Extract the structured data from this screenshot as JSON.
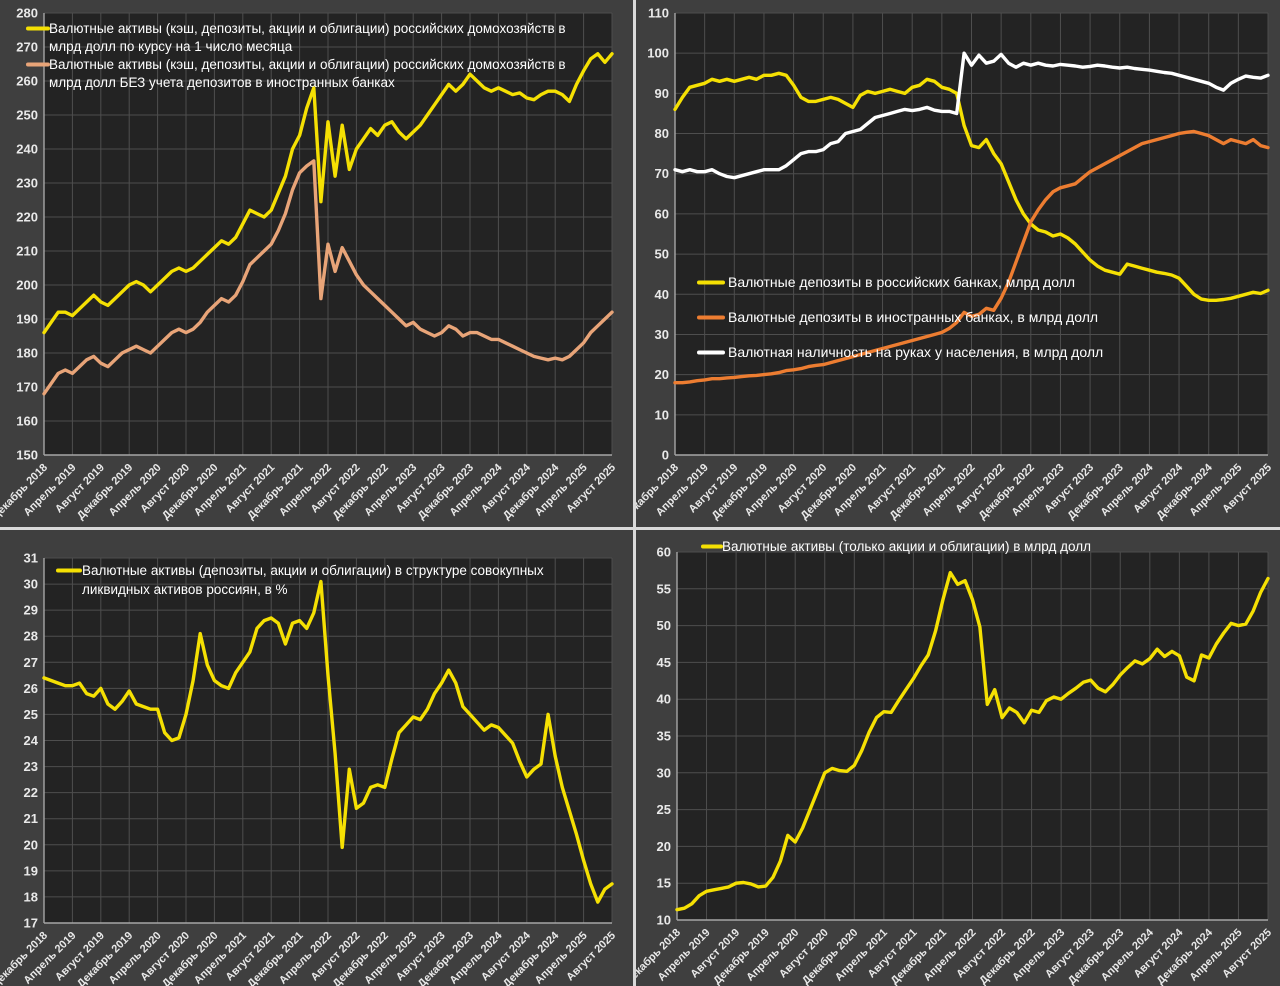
{
  "page": {
    "separator_color": "#d9d9d9",
    "panel_bg": "#3f3f3f",
    "plot_bg": "#232323",
    "grid_color": "#4e4e4e",
    "axis_color": "#a6a6a6",
    "tick_color": "#e9e9e9",
    "legend_color": "#ffffff",
    "accent_yellow": "#f5e003",
    "accent_salmon": "#e8a478",
    "accent_orange": "#ed7d31",
    "accent_white": "#ffffff"
  },
  "x_axis": {
    "n_points": 81,
    "points_per_tick": 4,
    "tick_labels": [
      "Декабрь 2018",
      "Апрель 2019",
      "Август 2019",
      "Декабрь 2019",
      "Апрель 2020",
      "Август 2020",
      "Декабрь 2020",
      "Апрель 2021",
      "Август 2021",
      "Декабрь 2021",
      "Апрель 2022",
      "Август 2022",
      "Декабрь 2022",
      "Апрель 2023",
      "Август 2023",
      "Декабрь 2023",
      "Апрель 2024",
      "Август 2024",
      "Декабрь 2024",
      "Апрель 2025",
      "Август 2025"
    ]
  },
  "chart_data": [
    {
      "id": "total-fx-assets",
      "type": "line",
      "position": "top-left",
      "y_axis": {
        "min": 150,
        "max": 280,
        "step": 10
      },
      "legend": {
        "entries": [
          {
            "color": "#f5e003",
            "lines": [
              "Валютные активы (кэш, депозиты, акции и облигации) российских домохозяйств в",
              "млрд долл по курсу на 1 число месяца"
            ]
          },
          {
            "color": "#e8a478",
            "lines": [
              "Валютные активы (кэш, депозиты, акции и облигации) российских домохозяйств в",
              "млрд долл БЕЗ учета депозитов в иностранных банках"
            ]
          }
        ]
      },
      "series": [
        {
          "name": "Валютные активы (кэш, депозиты, акции и облигации) российских домохозяйств в млрд долл по курсу на 1 число месяца",
          "color": "#f5e003",
          "values": [
            186,
            189,
            192,
            192,
            191,
            193,
            195,
            197,
            195,
            194,
            196,
            198,
            200,
            201,
            200,
            198,
            200,
            202,
            204,
            205,
            204,
            205,
            207,
            209,
            211,
            213,
            212,
            214,
            218,
            222,
            221,
            220,
            222,
            227,
            232,
            240,
            244,
            252,
            258,
            224.5,
            248,
            232,
            247,
            234,
            240,
            243,
            246,
            244,
            247,
            248,
            245,
            243,
            245,
            247,
            250,
            253,
            256,
            259,
            257,
            259,
            262,
            260,
            258,
            257,
            258,
            257,
            256,
            256.5,
            255,
            254.5,
            256,
            257,
            257,
            256,
            254,
            259,
            263,
            266.5,
            268,
            265.5,
            268
          ]
        },
        {
          "name": "Валютные активы (кэш, депозиты, акции и облигации) российских домохозяйств в млрд долл БЕЗ учета депозитов в иностранных банках",
          "color": "#e8a478",
          "values": [
            168,
            171,
            174,
            175,
            174,
            176,
            178,
            179,
            177,
            176,
            178,
            180,
            181,
            182,
            181,
            180,
            182,
            184,
            186,
            187,
            186,
            187,
            189,
            192,
            194,
            196,
            195,
            197,
            201,
            206,
            208,
            210,
            212,
            216,
            221,
            228,
            233,
            235,
            236.5,
            196,
            212,
            204,
            211,
            207,
            203,
            200,
            198,
            196,
            194,
            192,
            190,
            188,
            189,
            187,
            186,
            185,
            186,
            188,
            187,
            185,
            186,
            186,
            185,
            184,
            184,
            183,
            182,
            181,
            180,
            179,
            178.5,
            178,
            178.5,
            178,
            179,
            181,
            183,
            186,
            188,
            190,
            192
          ]
        }
      ]
    },
    {
      "id": "deposits-and-cash",
      "type": "line",
      "position": "top-right",
      "y_axis": {
        "min": 0,
        "max": 110,
        "step": 10
      },
      "legend": {
        "entries": [
          {
            "color": "#f5e003",
            "lines": [
              "Валютные депозиты в российских банках, млрд долл"
            ]
          },
          {
            "color": "#ed7d31",
            "lines": [
              "Валютные депозиты в иностранных банках, в млрд долл"
            ]
          },
          {
            "color": "#ffffff",
            "lines": [
              "Валютная наличность на руках у населения, в млрд долл"
            ]
          }
        ]
      },
      "series": [
        {
          "name": "Валютные депозиты в российских банках, млрд долл",
          "color": "#f5e003",
          "values": [
            86,
            89,
            91.5,
            92,
            92.5,
            93.5,
            93,
            93.5,
            93,
            93.5,
            94,
            93.5,
            94.5,
            94.5,
            95,
            94.5,
            92,
            89,
            88,
            88,
            88.5,
            89,
            88.5,
            87.5,
            86.5,
            89.5,
            90.5,
            90,
            90.5,
            91,
            90.5,
            90,
            91.5,
            92,
            93.5,
            93,
            91.5,
            91,
            90,
            82,
            77,
            76.5,
            78.5,
            75,
            72.5,
            68,
            63.5,
            60,
            57.5,
            56,
            55.5,
            54.5,
            55,
            54,
            52.5,
            50.5,
            48.5,
            47,
            46,
            45.5,
            45,
            47.5,
            47,
            46.5,
            46,
            45.5,
            45.2,
            44.8,
            44,
            42,
            40,
            38.8,
            38.5,
            38.5,
            38.7,
            39,
            39.5,
            40,
            40.5,
            40.2,
            41
          ]
        },
        {
          "name": "Валютная наличность на руках у населения, в млрд долл",
          "color": "#ffffff",
          "values": [
            71,
            70.5,
            71,
            70.5,
            70.5,
            71,
            70,
            69.3,
            69,
            69.5,
            70,
            70.5,
            71,
            71,
            71,
            72,
            73.5,
            75,
            75.5,
            75.5,
            76,
            77.5,
            78,
            80,
            80.5,
            81,
            82.5,
            84,
            84.5,
            85,
            85.5,
            86,
            85.7,
            86,
            86.5,
            85.8,
            85.5,
            85.5,
            85,
            100,
            97,
            99.5,
            97.5,
            98,
            99.7,
            97.5,
            96.5,
            97.5,
            97,
            97.5,
            97,
            96.8,
            97.2,
            97,
            96.8,
            96.5,
            96.7,
            97,
            96.8,
            96.5,
            96.3,
            96.5,
            96.2,
            96,
            95.8,
            95.5,
            95.2,
            95,
            94.5,
            94,
            93.5,
            93,
            92.5,
            91.5,
            90.8,
            92.5,
            93.5,
            94.3,
            94,
            93.8,
            94.5
          ]
        },
        {
          "name": "Валютные депозиты в иностранных банках, в млрд долл",
          "color": "#ed7d31",
          "values": [
            18,
            18,
            18.2,
            18.5,
            18.7,
            19,
            19,
            19.2,
            19.3,
            19.5,
            19.7,
            19.8,
            20,
            20.2,
            20.5,
            21,
            21.2,
            21.5,
            22,
            22.3,
            22.5,
            23,
            23.5,
            24,
            24.5,
            25,
            25.5,
            26,
            26.5,
            27,
            27.5,
            28,
            28.5,
            29,
            29.5,
            30,
            30.5,
            31.5,
            33,
            35.5,
            34.5,
            35,
            36.5,
            36,
            39,
            43,
            48,
            53,
            58,
            61,
            63.5,
            65.5,
            66.5,
            67,
            67.5,
            69,
            70.5,
            71.5,
            72.5,
            73.5,
            74.5,
            75.5,
            76.5,
            77.5,
            78,
            78.5,
            79,
            79.5,
            80,
            80.3,
            80.5,
            80,
            79.5,
            78.5,
            77.5,
            78.5,
            78,
            77.5,
            78.5,
            77,
            76.5
          ]
        }
      ]
    },
    {
      "id": "fx-share-of-liquid-assets",
      "type": "line",
      "position": "bottom-left",
      "y_axis": {
        "min": 17,
        "max": 31,
        "step": 1
      },
      "legend": {
        "entries": [
          {
            "color": "#f5e003",
            "lines": [
              "Валютные активы (депозиты, акции и облигации) в структуре совокупных",
              "ликвидных активов россиян, в %"
            ]
          }
        ]
      },
      "series": [
        {
          "name": "Валютные активы (депозиты, акции и облигации) в структуре совокупных ликвидных активов россиян, в %",
          "color": "#f5e003",
          "values": [
            26.4,
            26.3,
            26.2,
            26.1,
            26.1,
            26.2,
            25.8,
            25.7,
            26.0,
            25.4,
            25.2,
            25.5,
            25.9,
            25.4,
            25.3,
            25.2,
            25.2,
            24.3,
            24.0,
            24.1,
            25.0,
            26.3,
            28.1,
            26.9,
            26.3,
            26.1,
            26.0,
            26.6,
            27.0,
            27.4,
            28.3,
            28.6,
            28.7,
            28.5,
            27.7,
            28.5,
            28.6,
            28.3,
            28.9,
            30.1,
            26.5,
            23.5,
            19.9,
            22.9,
            21.4,
            21.6,
            22.2,
            22.3,
            22.2,
            23.3,
            24.3,
            24.6,
            24.9,
            24.8,
            25.2,
            25.8,
            26.2,
            26.7,
            26.2,
            25.3,
            25.0,
            24.7,
            24.4,
            24.6,
            24.5,
            24.2,
            23.9,
            23.2,
            22.6,
            22.9,
            23.1,
            25.0,
            23.4,
            22.2,
            21.3,
            20.4,
            19.4,
            18.5,
            17.8,
            18.3,
            18.5
          ]
        }
      ]
    },
    {
      "id": "stocks-and-bonds",
      "type": "line",
      "position": "bottom-right",
      "y_axis": {
        "min": 10,
        "max": 60,
        "step": 5
      },
      "legend": {
        "entries": [
          {
            "color": "#f5e003",
            "lines": [
              "Валютные активы (только акции и облигации) в млрд долл"
            ]
          }
        ]
      },
      "series": [
        {
          "name": "Валютные активы (только акции и облигации) в млрд долл",
          "color": "#f5e003",
          "values": [
            11.4,
            11.6,
            12.2,
            13.3,
            13.9,
            14.1,
            14.3,
            14.5,
            15.0,
            15.1,
            14.9,
            14.5,
            14.6,
            15.8,
            18.0,
            21.5,
            20.6,
            22.5,
            25.0,
            27.5,
            30.0,
            30.6,
            30.3,
            30.2,
            31.0,
            33.0,
            35.5,
            37.5,
            38.3,
            38.2,
            39.8,
            41.3,
            42.8,
            44.5,
            46.0,
            49.3,
            53.5,
            57.2,
            55.6,
            56.1,
            53.5,
            49.8,
            39.3,
            41.3,
            37.5,
            38.8,
            38.2,
            36.8,
            38.5,
            38.2,
            39.8,
            40.3,
            40.0,
            40.8,
            41.5,
            42.3,
            42.6,
            41.5,
            41.0,
            42.0,
            43.3,
            44.3,
            45.2,
            44.8,
            45.5,
            46.8,
            45.8,
            46.5,
            45.9,
            43.0,
            42.5,
            46.0,
            45.6,
            47.5,
            49.0,
            50.3,
            50.0,
            50.2,
            52.0,
            54.5,
            56.4
          ]
        }
      ]
    }
  ]
}
